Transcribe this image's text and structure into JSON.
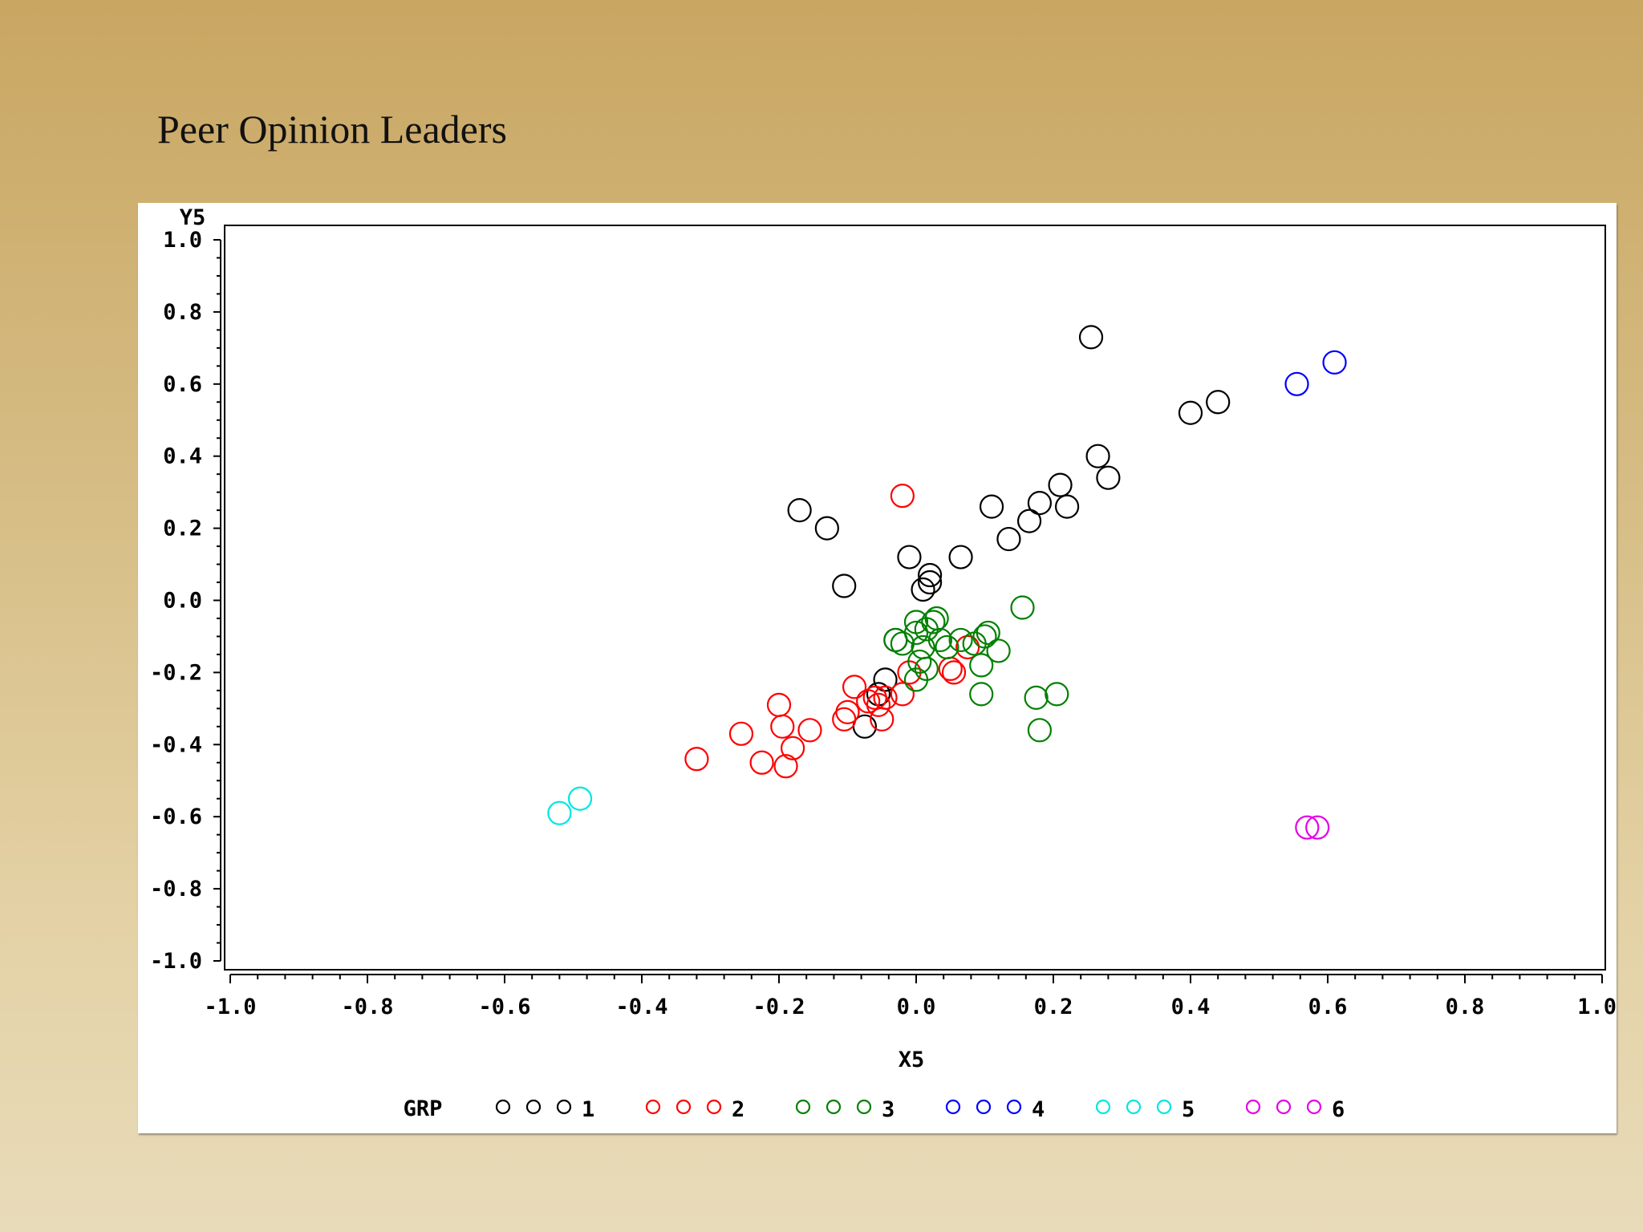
{
  "slide": {
    "title": "Peer Opinion Leaders"
  },
  "chart_data": {
    "type": "scatter",
    "title": "",
    "xlabel": "X5",
    "ylabel": "Y5",
    "xlim": [
      -1.0,
      1.0
    ],
    "ylim": [
      -1.0,
      1.0
    ],
    "x_ticks": [
      "-1.0",
      "-0.8",
      "-0.6",
      "-0.4",
      "-0.2",
      "0.0",
      "0.2",
      "0.4",
      "0.6",
      "0.8",
      "1.0"
    ],
    "y_ticks": [
      "1.0",
      "0.8",
      "0.6",
      "0.4",
      "0.2",
      "0.0",
      "-0.2",
      "-0.4",
      "-0.6",
      "-0.8",
      "-1.0"
    ],
    "grid": false,
    "legend": {
      "title": "GRP",
      "placement": "bottom"
    },
    "series": [
      {
        "name": "1",
        "color": "#000000",
        "points": [
          [
            0.255,
            0.73
          ],
          [
            0.4,
            0.52
          ],
          [
            0.44,
            0.55
          ],
          [
            0.265,
            0.4
          ],
          [
            0.28,
            0.34
          ],
          [
            0.21,
            0.32
          ],
          [
            0.18,
            0.27
          ],
          [
            0.22,
            0.26
          ],
          [
            0.165,
            0.22
          ],
          [
            0.11,
            0.26
          ],
          [
            0.135,
            0.17
          ],
          [
            0.065,
            0.12
          ],
          [
            -0.17,
            0.25
          ],
          [
            -0.13,
            0.2
          ],
          [
            -0.105,
            0.04
          ],
          [
            -0.01,
            0.12
          ],
          [
            0.02,
            0.07
          ],
          [
            0.02,
            0.05
          ],
          [
            0.01,
            0.03
          ],
          [
            -0.045,
            -0.22
          ],
          [
            -0.055,
            -0.26
          ],
          [
            -0.075,
            -0.35
          ],
          [
            -0.03,
            -0.11
          ]
        ]
      },
      {
        "name": "2",
        "color": "#ff0000",
        "points": [
          [
            -0.02,
            0.29
          ],
          [
            -0.32,
            -0.44
          ],
          [
            -0.255,
            -0.37
          ],
          [
            -0.225,
            -0.45
          ],
          [
            -0.2,
            -0.29
          ],
          [
            -0.195,
            -0.35
          ],
          [
            -0.19,
            -0.46
          ],
          [
            -0.18,
            -0.41
          ],
          [
            -0.155,
            -0.36
          ],
          [
            -0.105,
            -0.33
          ],
          [
            -0.1,
            -0.31
          ],
          [
            -0.09,
            -0.24
          ],
          [
            -0.07,
            -0.28
          ],
          [
            -0.06,
            -0.27
          ],
          [
            -0.055,
            -0.29
          ],
          [
            -0.05,
            -0.33
          ],
          [
            -0.045,
            -0.27
          ],
          [
            -0.02,
            -0.26
          ],
          [
            -0.01,
            -0.2
          ],
          [
            0.05,
            -0.19
          ],
          [
            0.055,
            -0.2
          ],
          [
            0.075,
            -0.13
          ]
        ]
      },
      {
        "name": "3",
        "color": "#008000",
        "points": [
          [
            0.0,
            -0.06
          ],
          [
            0.025,
            -0.06
          ],
          [
            0.03,
            -0.05
          ],
          [
            0.155,
            -0.02
          ],
          [
            -0.03,
            -0.11
          ],
          [
            -0.02,
            -0.12
          ],
          [
            0.0,
            -0.09
          ],
          [
            0.01,
            -0.13
          ],
          [
            0.015,
            -0.08
          ],
          [
            0.035,
            -0.11
          ],
          [
            0.045,
            -0.13
          ],
          [
            0.065,
            -0.11
          ],
          [
            0.085,
            -0.12
          ],
          [
            0.1,
            -0.1
          ],
          [
            0.105,
            -0.09
          ],
          [
            0.12,
            -0.14
          ],
          [
            0.095,
            -0.18
          ],
          [
            0.015,
            -0.19
          ],
          [
            0.005,
            -0.17
          ],
          [
            0.0,
            -0.22
          ],
          [
            0.095,
            -0.26
          ],
          [
            0.175,
            -0.27
          ],
          [
            0.205,
            -0.26
          ],
          [
            0.18,
            -0.36
          ]
        ]
      },
      {
        "name": "4",
        "color": "#0000ff",
        "points": [
          [
            0.555,
            0.6
          ],
          [
            0.61,
            0.66
          ]
        ]
      },
      {
        "name": "5",
        "color": "#00e5e5",
        "points": [
          [
            -0.52,
            -0.59
          ],
          [
            -0.49,
            -0.55
          ]
        ]
      },
      {
        "name": "6",
        "color": "#e600e6",
        "points": [
          [
            0.57,
            -0.63
          ],
          [
            0.585,
            -0.63
          ]
        ]
      }
    ]
  }
}
